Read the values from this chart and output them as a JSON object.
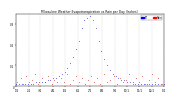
{
  "title": "Milwaukee Weather Evapotranspiration vs Rain per Day (Inches)",
  "legend": [
    {
      "label": "ET",
      "color": "#0000ff"
    },
    {
      "label": "Rain",
      "color": "#ff0000"
    }
  ],
  "background_color": "#ffffff",
  "grid_color": "#aaaaaa",
  "xlim": [
    0,
    365
  ],
  "ylim": [
    0,
    0.35
  ],
  "et_x": [
    1,
    8,
    15,
    22,
    29,
    36,
    43,
    50,
    57,
    64,
    71,
    78,
    85,
    92,
    99,
    106,
    113,
    120,
    127,
    134,
    141,
    148,
    155,
    162,
    169,
    176,
    183,
    190,
    197,
    204,
    211,
    218,
    225,
    232,
    239,
    246,
    253,
    260,
    267,
    274,
    281,
    288,
    295,
    302,
    309,
    316,
    323,
    330,
    337,
    344,
    351,
    358,
    365
  ],
  "et_y": [
    0.01,
    0.01,
    0.01,
    0.01,
    0.01,
    0.01,
    0.01,
    0.02,
    0.02,
    0.02,
    0.02,
    0.03,
    0.03,
    0.04,
    0.04,
    0.05,
    0.06,
    0.07,
    0.09,
    0.11,
    0.14,
    0.18,
    0.22,
    0.28,
    0.32,
    0.33,
    0.34,
    0.32,
    0.28,
    0.22,
    0.17,
    0.13,
    0.1,
    0.08,
    0.06,
    0.05,
    0.04,
    0.03,
    0.03,
    0.02,
    0.02,
    0.02,
    0.01,
    0.01,
    0.01,
    0.01,
    0.01,
    0.01,
    0.01,
    0.01,
    0.01,
    0.01,
    0.01
  ],
  "rain_x": [
    3,
    12,
    18,
    25,
    33,
    40,
    48,
    55,
    63,
    72,
    80,
    88,
    95,
    102,
    110,
    118,
    125,
    133,
    140,
    148,
    156,
    163,
    171,
    178,
    186,
    193,
    201,
    208,
    218,
    225,
    233,
    242,
    250,
    258,
    265,
    273,
    280,
    288,
    297,
    305,
    312,
    320,
    328,
    335,
    343,
    352,
    360
  ],
  "rain_y": [
    0.02,
    0.04,
    0.01,
    0.05,
    0.02,
    0.03,
    0.06,
    0.01,
    0.04,
    0.02,
    0.05,
    0.01,
    0.03,
    0.02,
    0.04,
    0.02,
    0.06,
    0.01,
    0.03,
    0.05,
    0.02,
    0.04,
    0.01,
    0.03,
    0.05,
    0.02,
    0.04,
    0.01,
    0.06,
    0.02,
    0.03,
    0.05,
    0.01,
    0.04,
    0.02,
    0.03,
    0.06,
    0.01,
    0.04,
    0.02,
    0.05,
    0.01,
    0.03,
    0.06,
    0.02,
    0.04,
    0.01
  ],
  "xticks": [
    1,
    32,
    60,
    91,
    121,
    152,
    182,
    213,
    244,
    274,
    305,
    335,
    365
  ],
  "xtick_labels": [
    "1/1",
    "2/1",
    "3/1",
    "4/1",
    "5/1",
    "6/1",
    "7/1",
    "8/1",
    "9/1",
    "10/1",
    "11/1",
    "12/1",
    "1/1"
  ],
  "yticks": [
    0.0,
    0.1,
    0.2,
    0.3
  ],
  "ytick_labels": [
    "0",
    "0.1",
    "0.2",
    "0.3"
  ]
}
